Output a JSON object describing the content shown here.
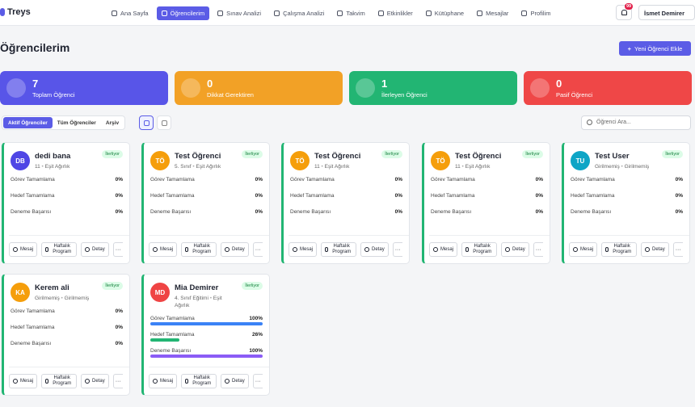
{
  "nav": {
    "brand": "Treys",
    "items": [
      "Ana Sayfa",
      "Öğrencilerim",
      "Sınav Analizi",
      "Çalışma Analizi",
      "Takvim",
      "Etkinlikler",
      "Kütüphane",
      "Mesajlar",
      "Profilim"
    ],
    "active": 1,
    "notifications": "99",
    "user": "İsmet Demirer"
  },
  "header": {
    "title": "Öğrencilerim",
    "add_button": "Yeni Öğrenci Ekle"
  },
  "stats": [
    {
      "value": "7",
      "label": "Toplam Öğrenci",
      "color": "#5855e8"
    },
    {
      "value": "0",
      "label": "Dikkat Gerektiren",
      "color": "#f2a126"
    },
    {
      "value": "1",
      "label": "İlerleyen Öğrenci",
      "color": "#22b573"
    },
    {
      "value": "0",
      "label": "Pasif Öğrenci",
      "color": "#ef4747"
    }
  ],
  "tabs": {
    "items": [
      "Aktif Öğrenciler",
      "Tüm Öğrenciler",
      "Arşiv"
    ],
    "active": 0
  },
  "search_placeholder": "Öğrenci Ara...",
  "metric_labels": [
    "Görev Tamamlama",
    "Hedef Tamamlama",
    "Deneme Başarısı"
  ],
  "metric_colors": [
    "#3b82f6",
    "#22b573",
    "#8b5cf6"
  ],
  "actions": [
    "Mesaj",
    "Haftalık Program",
    "Detay"
  ],
  "students": [
    {
      "initials": "DB",
      "name": "dedi bana",
      "status": "İlerliyor",
      "details": [
        "11",
        "Eşit Ağırlık"
      ],
      "color": "#4f46e5",
      "metrics": [
        {
          "value": 0,
          "label": "0%"
        },
        {
          "value": 0,
          "label": "0%"
        },
        {
          "value": 0,
          "label": "0%"
        }
      ]
    },
    {
      "initials": "TÖ",
      "name": "Test Öğrenci",
      "status": "İlerliyor",
      "details": [
        "5. Sınıf",
        "Eşit Ağırlık"
      ],
      "color": "#f59e0b",
      "metrics": [
        {
          "value": 0,
          "label": "0%"
        },
        {
          "value": 0,
          "label": "0%"
        },
        {
          "value": 0,
          "label": "0%"
        }
      ]
    },
    {
      "initials": "TÖ",
      "name": "Test Öğrenci",
      "status": "İlerliyor",
      "details": [
        "11",
        "Eşit Ağırlık"
      ],
      "color": "#f59e0b",
      "metrics": [
        {
          "value": 0,
          "label": "0%"
        },
        {
          "value": 0,
          "label": "0%"
        },
        {
          "value": 0,
          "label": "0%"
        }
      ]
    },
    {
      "initials": "TÖ",
      "name": "Test Öğrenci",
      "status": "İlerliyor",
      "details": [
        "11",
        "Eşit Ağırlık"
      ],
      "color": "#f59e0b",
      "metrics": [
        {
          "value": 0,
          "label": "0%"
        },
        {
          "value": 0,
          "label": "0%"
        },
        {
          "value": 0,
          "label": "0%"
        }
      ]
    },
    {
      "initials": "TU",
      "name": "Test User",
      "status": "İlerliyor",
      "details": [
        "Girilmemiş",
        "Girilmemiş"
      ],
      "color": "#0ea5c6",
      "metrics": [
        {
          "value": 0,
          "label": "0%"
        },
        {
          "value": 0,
          "label": "0%"
        },
        {
          "value": 0,
          "label": "0%"
        }
      ]
    },
    {
      "initials": "KA",
      "name": "Kerem ali",
      "status": "İlerliyor",
      "details": [
        "Girilmemiş",
        "Girilmemiş"
      ],
      "color": "#f59e0b",
      "metrics": [
        {
          "value": 0,
          "label": "0%"
        },
        {
          "value": 0,
          "label": "0%"
        },
        {
          "value": 0,
          "label": "0%"
        }
      ]
    },
    {
      "initials": "MD",
      "name": "Mia Demirer",
      "status": "İlerliyor",
      "details": [
        "4. Sınıf Eğitimi",
        "Eşit Ağırlık"
      ],
      "color": "#ef4444",
      "metrics": [
        {
          "value": 100,
          "label": "100%"
        },
        {
          "value": 26,
          "label": "26%"
        },
        {
          "value": 100,
          "label": "100%"
        }
      ]
    }
  ]
}
